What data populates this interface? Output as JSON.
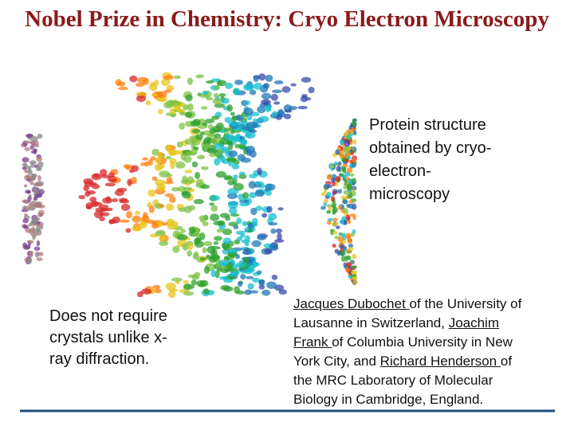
{
  "title": "Nobel Prize in Chemistry: Cryo Electron Microscopy",
  "caption": {
    "lines": [
      "Protein structure",
      "obtained by cryo-",
      "electron-",
      "microscopy"
    ]
  },
  "note": {
    "lines": [
      "Does not require",
      "crystals unlike x-",
      "ray diffraction."
    ]
  },
  "laureates": {
    "lines": [
      [
        {
          "text": "Jacques Dubochet ",
          "underline": true
        },
        "of the University of"
      ],
      [
        "Lausanne in Switzerland, ",
        {
          "text": "Joachim",
          "underline": true
        }
      ],
      [
        {
          "text": "Frank ",
          "underline": true
        },
        "of Columbia University in New"
      ],
      [
        "York City, and ",
        {
          "text": "Richard Henderson ",
          "underline": true
        },
        "of"
      ],
      [
        "the MRC Laboratory of Molecular"
      ],
      [
        "Biology in Cambridge, England."
      ]
    ]
  }
}
